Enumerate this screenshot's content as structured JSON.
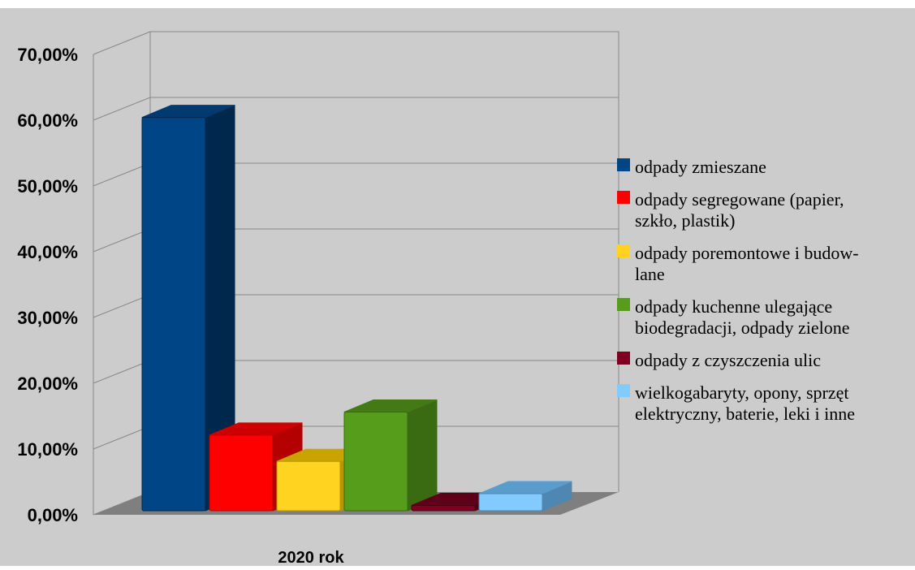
{
  "chart_data": {
    "type": "bar",
    "categories": [
      "2020 rok"
    ],
    "y_ticks": [
      "0,00%",
      "10,00%",
      "20,00%",
      "30,00%",
      "40,00%",
      "50,00%",
      "60,00%",
      "70,00%"
    ],
    "ylim": [
      0,
      70
    ],
    "grid": true,
    "legend_position": "right",
    "series": [
      {
        "name": "odpady zmieszane",
        "name_lines": [
          "odpady zmieszane"
        ],
        "value": 59.8,
        "color": "#004586",
        "top_color": "#003a70",
        "side_color": "#00274c"
      },
      {
        "name": "odpady segregowane (papier, szkło, plastik)",
        "name_lines": [
          "odpady segregowane (papier,",
          "szkło, plastik)"
        ],
        "value": 11.5,
        "color": "#ff0000",
        "top_color": "#cc0000",
        "side_color": "#b50000"
      },
      {
        "name": "odpady poremontowe i budowlane",
        "name_lines": [
          "odpady poremontowe i budow-",
          "lane"
        ],
        "value": 7.5,
        "color": "#ffd320",
        "top_color": "#c9a400",
        "side_color": "#b89600"
      },
      {
        "name": "odpady kuchenne ulegające biodegradacji, odpady zielone",
        "name_lines": [
          "odpady kuchenne ulegające",
          "biodegradacji, odpady zielone"
        ],
        "value": 15.0,
        "color": "#579d1c",
        "top_color": "#447a16",
        "side_color": "#3a6a12"
      },
      {
        "name": "odpady z czyszczenia ulic",
        "name_lines": [
          "odpady z czyszczenia ulic"
        ],
        "value": 0.8,
        "color": "#7e0021",
        "top_color": "#5e0018",
        "side_color": "#4c0014"
      },
      {
        "name": "wielkogabaryty, opony, sprzęt elektryczny, baterie, leki i inne",
        "name_lines": [
          "wielkogabaryty, opony, sprzęt",
          "elektryczny, baterie, leki i inne"
        ],
        "value": 2.6,
        "color": "#83caff",
        "top_color": "#5a9ccc",
        "side_color": "#4e87b2"
      }
    ]
  },
  "colors": {
    "background": "#cccccc",
    "grid": "#888888",
    "floor": "#7f7f7f"
  }
}
